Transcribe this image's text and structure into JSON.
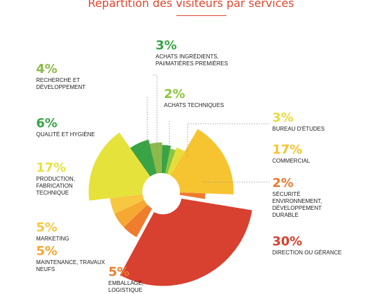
{
  "title": "Répartition des visiteurs par services",
  "chart_data": {
    "type": "pie",
    "title": "Répartition des visiteurs par services",
    "slices": [
      {
        "percent_label": "3%",
        "label": "ACHATS INGRÉDIENTS, PAI/MATIÈRES PREMIÈRES",
        "value": 3,
        "color": "#3aa346"
      },
      {
        "percent_label": "2%",
        "label": "ACHATS TECHNIQUES",
        "value": 2,
        "color": "#8cc63f"
      },
      {
        "percent_label": "3%",
        "label": "BUREAU D'ÉTUDES",
        "value": 3,
        "color": "#e6dd3b"
      },
      {
        "percent_label": "17%",
        "label": "COMMERCIAL",
        "value": 17,
        "color": "#f7c431"
      },
      {
        "percent_label": "2%",
        "label": "SÉCURITÉ ENVIRONNEMENT, DÉVELOPPEMENT DURABLE",
        "value": 2,
        "color": "#ee7a30"
      },
      {
        "percent_label": "30%",
        "label": "DIRECTION OU GÉRANCE",
        "value": 30,
        "color": "#d84030"
      },
      {
        "percent_label": "5%",
        "label": "EMBALLAGE, LOGISTIQUE",
        "value": 5,
        "color": "#ee7d2e"
      },
      {
        "percent_label": "5%",
        "label": "MAINTENANCE, TRAVAUX NEUFS",
        "value": 5,
        "color": "#f5a832"
      },
      {
        "percent_label": "5%",
        "label": "MARKETING",
        "value": 5,
        "color": "#f7c742"
      },
      {
        "percent_label": "17%",
        "label": "PRODUCTION, FABRICATION TECHNIQUE",
        "value": 17,
        "color": "#e6e23c"
      },
      {
        "percent_label": "6%",
        "label": "QUALITÉ ET HYGIÈNE",
        "value": 6,
        "color": "#3aa346"
      },
      {
        "percent_label": "4%",
        "label": "RECHERCHE ET DÉVELOPPEMENT",
        "value": 4,
        "color": "#8db84a"
      }
    ]
  }
}
